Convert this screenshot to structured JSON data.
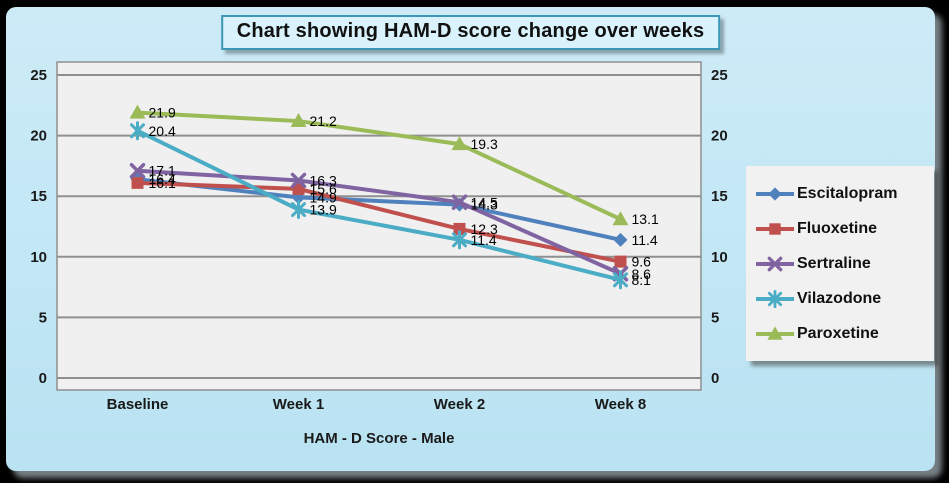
{
  "chart_data": {
    "type": "line",
    "title": "Chart showing HAM-D score change over weeks",
    "xlabel": "HAM - D Score - Male",
    "categories": [
      "Baseline",
      "Week 1",
      "Week 2",
      "Week 8"
    ],
    "series": [
      {
        "name": "Escitalopram",
        "color": "#4F81BD",
        "marker": "diamond",
        "values": [
          16.4,
          14.9,
          14.3,
          11.4
        ]
      },
      {
        "name": "Fluoxetine",
        "color": "#C0504D",
        "marker": "square",
        "values": [
          16.1,
          15.6,
          12.3,
          9.6
        ]
      },
      {
        "name": "Sertraline",
        "color": "#8064A2",
        "marker": "x",
        "values": [
          17.1,
          16.3,
          14.5,
          8.6
        ]
      },
      {
        "name": "Vilazodone",
        "color": "#4BACC6",
        "marker": "star",
        "values": [
          20.4,
          13.9,
          11.4,
          8.1
        ]
      },
      {
        "name": "Paroxetine",
        "color": "#9BBB59",
        "marker": "triangle",
        "values": [
          21.9,
          21.2,
          19.3,
          13.1
        ]
      }
    ],
    "ylim": [
      0,
      25
    ],
    "ytick_step": 5,
    "yticks": [
      "0",
      "5",
      "10",
      "15",
      "20",
      "25"
    ],
    "grid": true,
    "axis_sides": [
      "left",
      "right"
    ],
    "data_labels": true,
    "legend_position": "right"
  },
  "style_colors": {
    "plot_background": "#f0f0f0",
    "gridline": "#8f8f8f",
    "chart_background": "#c2e7f5",
    "title_border": "#3d96b4",
    "title_fill": "#d9f2fb",
    "text": "#1a1a1a"
  }
}
